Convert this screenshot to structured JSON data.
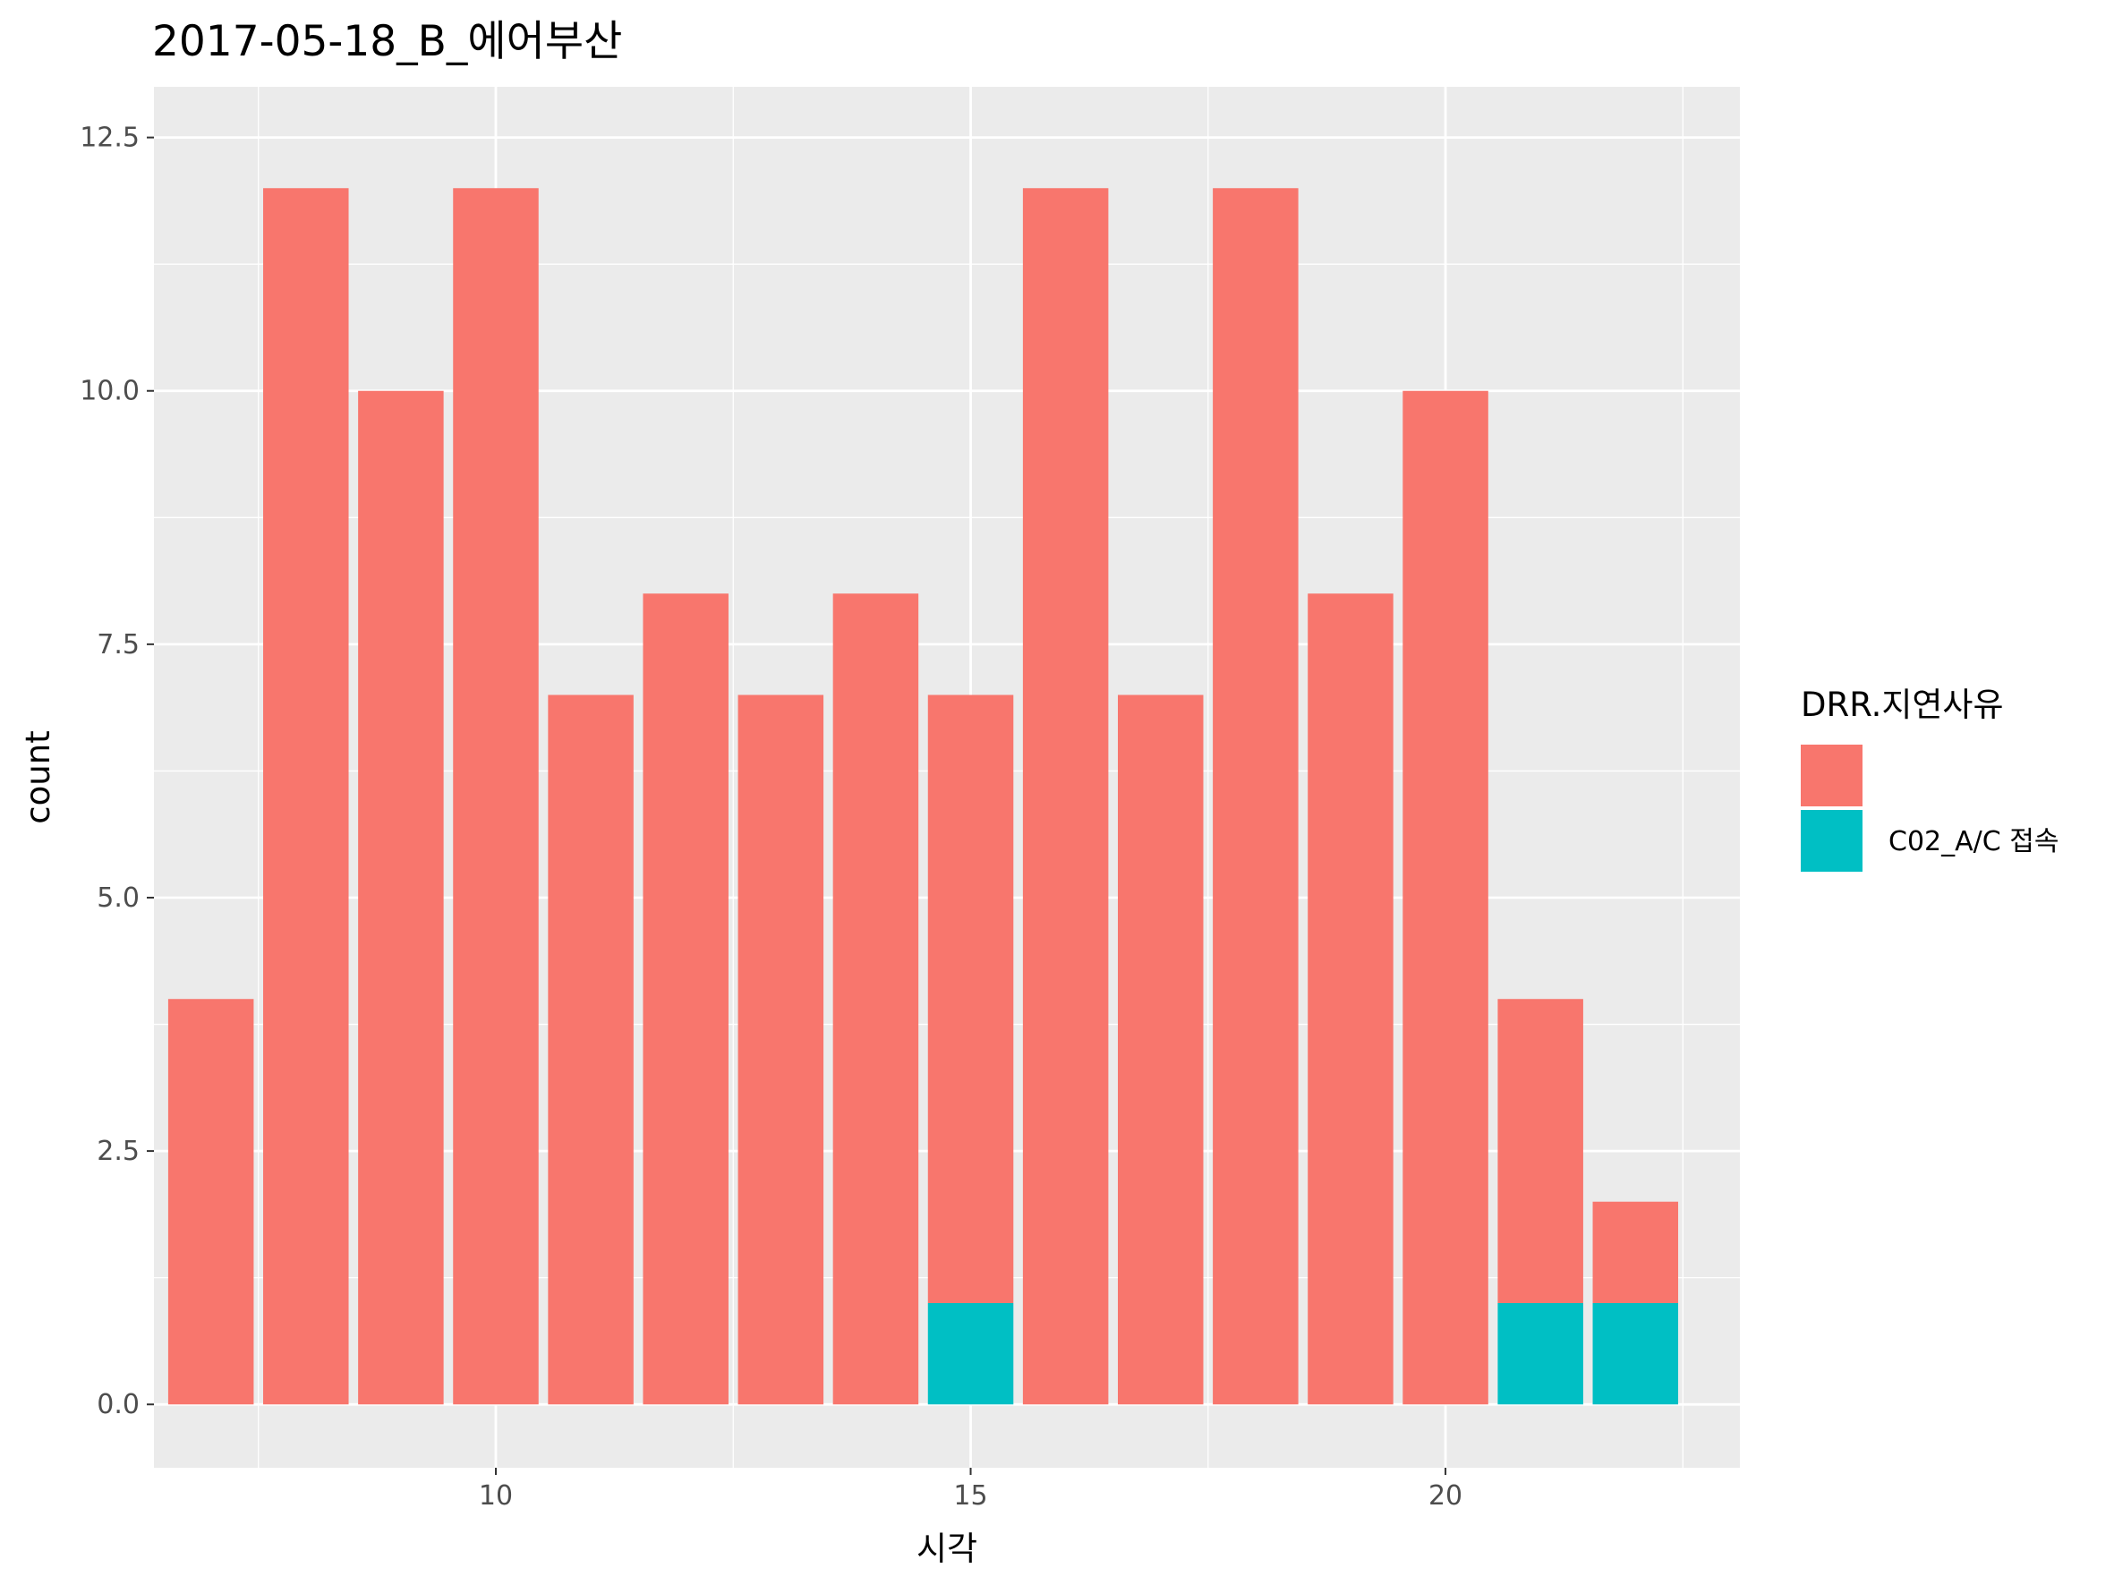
{
  "chart_data": {
    "type": "bar",
    "stacked": true,
    "title": "2017-05-18_B_에어부산",
    "xlabel": "시각",
    "ylabel": "count",
    "xlim": [
      6.4,
      23.1
    ],
    "ylim": [
      -0.625,
      13.0
    ],
    "x_ticks": [
      10,
      15,
      20
    ],
    "x_tick_labels": [
      "10",
      "15",
      "20"
    ],
    "y_ticks": [
      0,
      2.5,
      5,
      7.5,
      10,
      12.5
    ],
    "y_tick_labels": [
      "0.0",
      "2.5",
      "5.0",
      "7.5",
      "10.0",
      "12.5"
    ],
    "grid": true,
    "legend": {
      "position": "right",
      "title": "DRR.지연사유",
      "entries": [
        {
          "label": "",
          "color": "#F8766D"
        },
        {
          "label": "C02_A/C 접속",
          "color": "#00BFC4"
        }
      ]
    },
    "categories": [
      7,
      8,
      9,
      10,
      11,
      12,
      13,
      14,
      15,
      16,
      17,
      18,
      19,
      20,
      21,
      22
    ],
    "series": [
      {
        "name": "C02_A/C 접속",
        "color": "#00BFC4",
        "values": [
          0,
          0,
          0,
          0,
          0,
          0,
          0,
          0,
          1,
          0,
          0,
          0,
          0,
          0,
          1,
          1
        ]
      },
      {
        "name": "",
        "color": "#F8766D",
        "values": [
          4,
          12,
          10,
          12,
          7,
          8,
          7,
          8,
          6,
          12,
          7,
          12,
          8,
          10,
          3,
          1
        ]
      }
    ]
  }
}
